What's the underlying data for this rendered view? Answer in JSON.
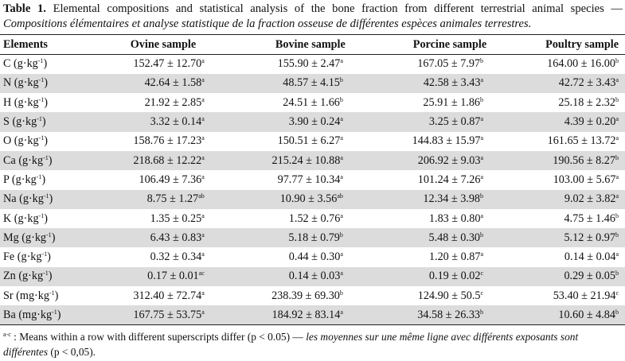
{
  "caption": {
    "label": "Table 1.",
    "en": "Elemental compositions and statistical analysis of the bone fraction from different terrestrial animal species —",
    "fr": "Compositions élémentaires et analyse statistique de la fraction osseuse de différentes espèces animales terrestres."
  },
  "headers": [
    "Elements",
    "Ovine sample",
    "Bovine sample",
    "Porcine sample",
    "Poultry sample"
  ],
  "rows": [
    {
      "element": "C",
      "unit": "g·kg",
      "unit_exp": "-1",
      "cells": [
        {
          "v": "152.47 ± 12.70",
          "s": "a"
        },
        {
          "v": "155.90 ± 2.47",
          "s": "a"
        },
        {
          "v": "167.05 ± 7.97",
          "s": "b"
        },
        {
          "v": "164.00 ± 16.00",
          "s": "b"
        }
      ]
    },
    {
      "element": "N",
      "unit": "g·kg",
      "unit_exp": "-1",
      "cells": [
        {
          "v": "42.64 ± 1.58",
          "s": "a"
        },
        {
          "v": "48.57 ± 4.15",
          "s": "b"
        },
        {
          "v": "42.58 ± 3.43",
          "s": "a"
        },
        {
          "v": "42.72 ± 3.43",
          "s": "a"
        }
      ]
    },
    {
      "element": "H",
      "unit": "g·kg",
      "unit_exp": "-1",
      "cells": [
        {
          "v": "21.92 ± 2.85",
          "s": "a"
        },
        {
          "v": "24.51 ± 1.66",
          "s": "b"
        },
        {
          "v": "25.91 ± 1.86",
          "s": "b"
        },
        {
          "v": "25.18 ± 2.32",
          "s": "b"
        }
      ]
    },
    {
      "element": "S",
      "unit": "g·kg",
      "unit_exp": "-1",
      "cells": [
        {
          "v": "3.32 ± 0.14",
          "s": "a"
        },
        {
          "v": "3.90 ± 0.24",
          "s": "a"
        },
        {
          "v": "3.25 ± 0.87",
          "s": "a"
        },
        {
          "v": "4.39 ± 0.20",
          "s": "a"
        }
      ]
    },
    {
      "element": "O",
      "unit": "g·kg",
      "unit_exp": "-1",
      "cells": [
        {
          "v": "158.76 ± 17.23",
          "s": "a"
        },
        {
          "v": "150.51 ± 6.27",
          "s": "a"
        },
        {
          "v": "144.83 ± 15.97",
          "s": "a"
        },
        {
          "v": "161.65 ± 13.72",
          "s": "a"
        }
      ]
    },
    {
      "element": "Ca",
      "unit": "g·kg",
      "unit_exp": "-1",
      "cells": [
        {
          "v": "218.68 ± 12.22",
          "s": "a"
        },
        {
          "v": "215.24 ± 10.88",
          "s": "a"
        },
        {
          "v": "206.92 ± 9.03",
          "s": "a"
        },
        {
          "v": "190.56 ± 8.27",
          "s": "b"
        }
      ]
    },
    {
      "element": "P",
      "unit": "g·kg",
      "unit_exp": "-1",
      "cells": [
        {
          "v": "106.49 ± 7.36",
          "s": "a"
        },
        {
          "v": "97.77 ± 10.34",
          "s": "a"
        },
        {
          "v": "101.24 ± 7.26",
          "s": "a"
        },
        {
          "v": "103.00 ± 5.67",
          "s": "a"
        }
      ]
    },
    {
      "element": "Na",
      "unit": "g·kg",
      "unit_exp": "-1",
      "cells": [
        {
          "v": "8.75 ± 1.27",
          "s": "ab"
        },
        {
          "v": "10.90 ± 3.56",
          "s": "ab"
        },
        {
          "v": "12.34 ± 3.98",
          "s": "b"
        },
        {
          "v": "9.02 ± 3.82",
          "s": "a"
        }
      ]
    },
    {
      "element": "K",
      "unit": "g·kg",
      "unit_exp": "-1",
      "cells": [
        {
          "v": "1.35 ± 0.25",
          "s": "a"
        },
        {
          "v": "1.52 ± 0.76",
          "s": "a"
        },
        {
          "v": "1.83 ± 0.80",
          "s": "a"
        },
        {
          "v": "4.75 ± 1.46",
          "s": "b"
        }
      ]
    },
    {
      "element": "Mg",
      "unit": "g·kg",
      "unit_exp": "-1",
      "cells": [
        {
          "v": "6.43 ± 0.83",
          "s": "a"
        },
        {
          "v": "5.18 ± 0.79",
          "s": "b"
        },
        {
          "v": "5.48 ± 0.30",
          "s": "b"
        },
        {
          "v": "5.12 ± 0.97",
          "s": "b"
        }
      ]
    },
    {
      "element": "Fe",
      "unit": "g·kg",
      "unit_exp": "-1",
      "cells": [
        {
          "v": "0.32 ± 0.34",
          "s": "a"
        },
        {
          "v": "0.44 ± 0.30",
          "s": "a"
        },
        {
          "v": "1.20 ± 0.87",
          "s": "a"
        },
        {
          "v": "0.14 ± 0.04",
          "s": "a"
        }
      ]
    },
    {
      "element": "Zn",
      "unit": "g·kg",
      "unit_exp": "-1",
      "cells": [
        {
          "v": "0.17 ± 0.01",
          "s": "ac"
        },
        {
          "v": "0.14 ± 0.03",
          "s": "a"
        },
        {
          "v": "0.19 ± 0.02",
          "s": "c"
        },
        {
          "v": "0.29 ± 0.05",
          "s": "b"
        }
      ]
    },
    {
      "element": "Sr",
      "unit": "mg·kg",
      "unit_exp": "-1",
      "cells": [
        {
          "v": "312.40 ± 72.74",
          "s": "a"
        },
        {
          "v": "238.39 ± 69.30",
          "s": "b"
        },
        {
          "v": "124.90 ± 50.5",
          "s": "c"
        },
        {
          "v": "53.40 ± 21.94",
          "s": "c"
        }
      ]
    },
    {
      "element": "Ba",
      "unit": "mg·kg",
      "unit_exp": "-1",
      "cells": [
        {
          "v": "167.75 ± 53.75",
          "s": "a"
        },
        {
          "v": "184.92 ± 83.14",
          "s": "a"
        },
        {
          "v": "34.58 ± 26.33",
          "s": "b"
        },
        {
          "v": "10.60 ± 4.84",
          "s": "b"
        }
      ]
    }
  ],
  "footnote": {
    "mark": "a-c",
    "en": ": Means within a row with different superscripts differ (p < 0.05) —",
    "fr": "les moyennes sur une même ligne avec différents exposants sont différentes",
    "fr_tail": "(p < 0,05)."
  }
}
